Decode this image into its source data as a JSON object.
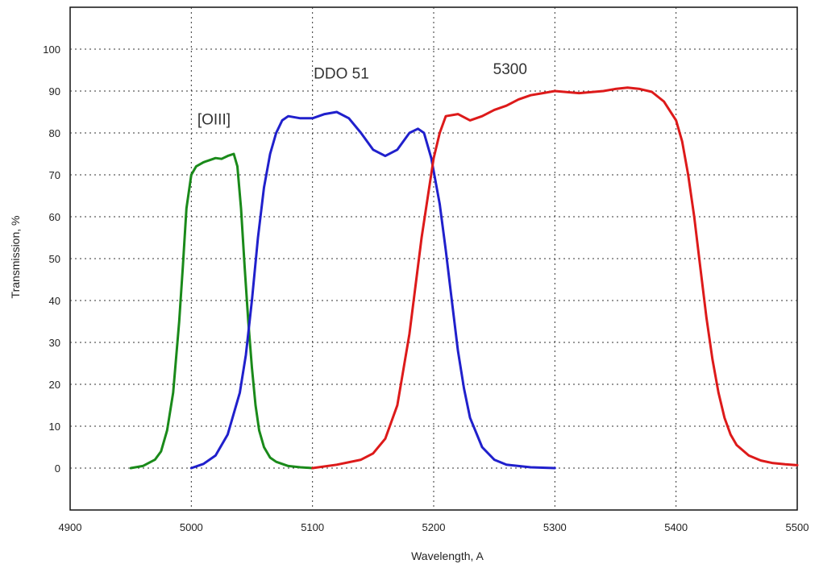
{
  "chart_data": {
    "type": "line",
    "title": "",
    "xlabel": "Wavelength, A",
    "ylabel": "Transmission, %",
    "xlim": [
      4900,
      5500
    ],
    "ylim": [
      -10,
      110
    ],
    "x_ticks": [
      4900,
      5000,
      5100,
      5200,
      5300,
      5400,
      5500
    ],
    "y_ticks": [
      0,
      10,
      20,
      30,
      40,
      50,
      60,
      70,
      80,
      90,
      100
    ],
    "grid": true,
    "legend": "none",
    "annotations": [
      {
        "text": "[OIII]",
        "x": 5005,
        "y": 82
      },
      {
        "text": "DDO 51",
        "x": 5101,
        "y": 93
      },
      {
        "text": "5300",
        "x": 5249,
        "y": 94
      }
    ],
    "series": [
      {
        "color": "#1a8a1a",
        "x": [
          4950,
          4960,
          4970,
          4975,
          4980,
          4985,
          4990,
          4993,
          4996,
          5000,
          5004,
          5010,
          5015,
          5020,
          5025,
          5030,
          5035,
          5038,
          5041,
          5044,
          5047,
          5050,
          5053,
          5056,
          5060,
          5065,
          5070,
          5080,
          5090,
          5100
        ],
        "y": [
          0,
          0.5,
          2,
          4,
          9,
          18,
          35,
          48,
          62,
          70,
          72,
          73,
          73.5,
          74,
          73.8,
          74.5,
          75,
          72,
          62,
          48,
          35,
          24,
          15,
          9,
          5,
          2.5,
          1.5,
          0.5,
          0.2,
          0
        ]
      },
      {
        "color": "#2020cc",
        "x": [
          5000,
          5010,
          5020,
          5030,
          5040,
          5045,
          5050,
          5055,
          5060,
          5065,
          5070,
          5075,
          5080,
          5090,
          5100,
          5110,
          5120,
          5130,
          5140,
          5150,
          5160,
          5170,
          5180,
          5187,
          5192,
          5198,
          5205,
          5210,
          5215,
          5220,
          5225,
          5230,
          5240,
          5250,
          5260,
          5280,
          5300
        ],
        "y": [
          0,
          1,
          3,
          8,
          18,
          27,
          40,
          55,
          67,
          75,
          80,
          83,
          84,
          83.5,
          83.5,
          84.5,
          85,
          83.5,
          80,
          76,
          74.5,
          76,
          80,
          81,
          80,
          74,
          63,
          52,
          40,
          28,
          19,
          12,
          5,
          2,
          0.8,
          0.2,
          0
        ]
      },
      {
        "color": "#dd1a1a",
        "x": [
          5100,
          5120,
          5140,
          5150,
          5160,
          5170,
          5180,
          5190,
          5200,
          5205,
          5210,
          5220,
          5230,
          5240,
          5250,
          5260,
          5270,
          5280,
          5290,
          5300,
          5320,
          5340,
          5350,
          5360,
          5370,
          5380,
          5390,
          5400,
          5405,
          5410,
          5415,
          5420,
          5425,
          5430,
          5435,
          5440,
          5445,
          5450,
          5460,
          5470,
          5480,
          5490,
          5500
        ],
        "y": [
          0,
          0.8,
          2,
          3.5,
          7,
          15,
          32,
          55,
          74,
          80,
          84,
          84.5,
          83,
          84,
          85.5,
          86.5,
          88,
          89,
          89.5,
          90,
          89.5,
          90,
          90.5,
          90.8,
          90.5,
          89.8,
          87.5,
          83,
          78,
          70,
          60,
          48,
          36,
          26,
          18,
          12,
          8,
          5.5,
          3,
          1.8,
          1.2,
          0.9,
          0.7
        ]
      }
    ]
  }
}
